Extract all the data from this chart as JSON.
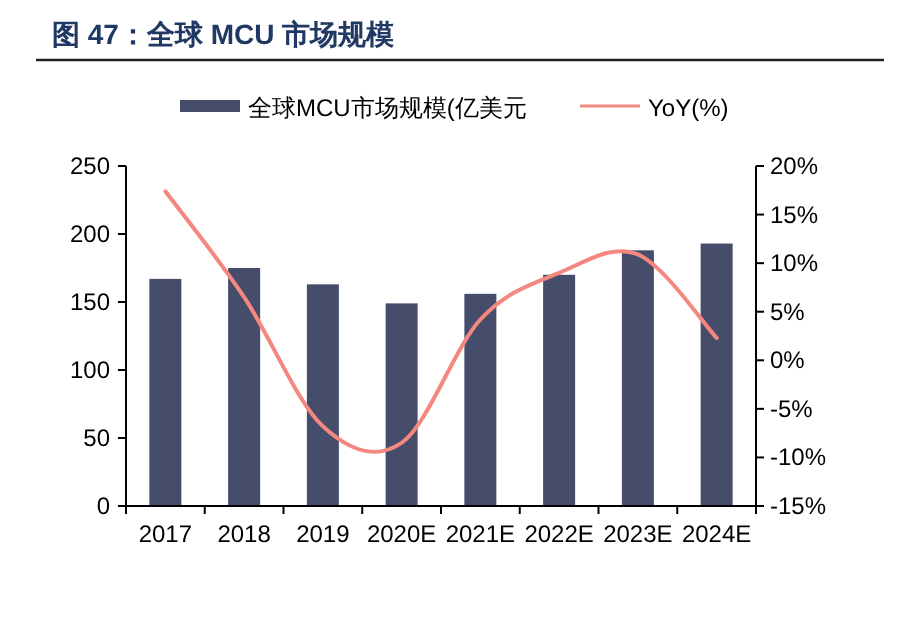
{
  "chart_data": {
    "type": "bar",
    "title": "图 47：全球 MCU 市场规模",
    "categories": [
      "2017",
      "2018",
      "2019",
      "2020E",
      "2021E",
      "2022E",
      "2023E",
      "2024E"
    ],
    "series": [
      {
        "name": "全球MCU市场规模(亿美元",
        "color": "#454d6b",
        "values": [
          167,
          175,
          163,
          149,
          156,
          170,
          188,
          193
        ]
      },
      {
        "name": "YoY(%)",
        "type": "line",
        "axis": "y2",
        "color": "#f4877f",
        "values": [
          17.4,
          6.5,
          -6.8,
          -8.5,
          4.2,
          9.0,
          10.9,
          2.3
        ]
      }
    ],
    "ylim": [
      0,
      250
    ],
    "yticks": [
      0,
      50,
      100,
      150,
      200,
      250
    ],
    "y2lim": [
      -15,
      20
    ],
    "y2ticks": [
      {
        "value": -15,
        "label": "-15%"
      },
      {
        "value": -10,
        "label": "-10%"
      },
      {
        "value": -5,
        "label": "-5%"
      },
      {
        "value": 0,
        "label": "0%"
      },
      {
        "value": 5,
        "label": "5%"
      },
      {
        "value": 10,
        "label": "10%"
      },
      {
        "value": 15,
        "label": "15%"
      },
      {
        "value": 20,
        "label": "20%"
      }
    ],
    "legend": "top",
    "grid": false
  }
}
